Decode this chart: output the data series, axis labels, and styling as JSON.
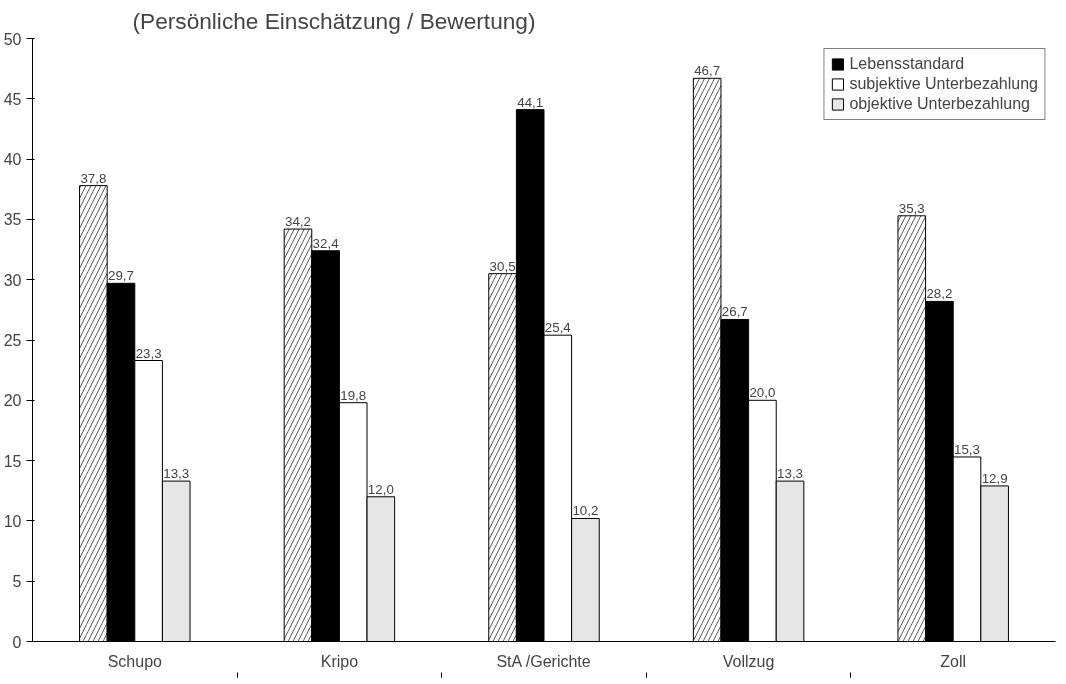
{
  "chart_data": {
    "type": "bar",
    "subtitle": "(Persönliche Einschätzung / Bewertung)",
    "categories": [
      "Schupo",
      "Kripo",
      "StA /Gerichte",
      "Vollzug",
      "Zoll"
    ],
    "series": [
      {
        "color": "#ffffff",
        "values": [
          37.8,
          34.2,
          30.5,
          46.7,
          35.3
        ],
        "value_labels": [
          "37,8",
          "34,2",
          "30,5",
          "46,7",
          "35,3"
        ]
      },
      {
        "name": "Lebensstandard",
        "color": "#000000",
        "values": [
          29.7,
          32.4,
          44.1,
          26.7,
          28.2
        ],
        "value_labels": [
          "29,7",
          "32,4",
          "44,1",
          "26,7",
          "28,2"
        ]
      },
      {
        "name": "subjektive Unterbezahlung",
        "color": "#ffffff",
        "values": [
          23.3,
          19.8,
          25.4,
          20.0,
          15.3
        ],
        "value_labels": [
          "23,3",
          "19,8",
          "25,4",
          "20,0",
          "15,3"
        ]
      },
      {
        "name": "objektive Unterbezahlung",
        "color": "#e6e6e6",
        "values": [
          13.3,
          12.0,
          10.2,
          13.3,
          12.9
        ],
        "value_labels": [
          "13,3",
          "12,0",
          "10,2",
          "13,3",
          "12,9"
        ]
      }
    ],
    "ylim": [
      0,
      50
    ],
    "yticks": [
      0,
      5,
      10,
      15,
      20,
      25,
      30,
      35,
      40,
      45,
      50
    ],
    "grid": false,
    "legend": "top right"
  }
}
